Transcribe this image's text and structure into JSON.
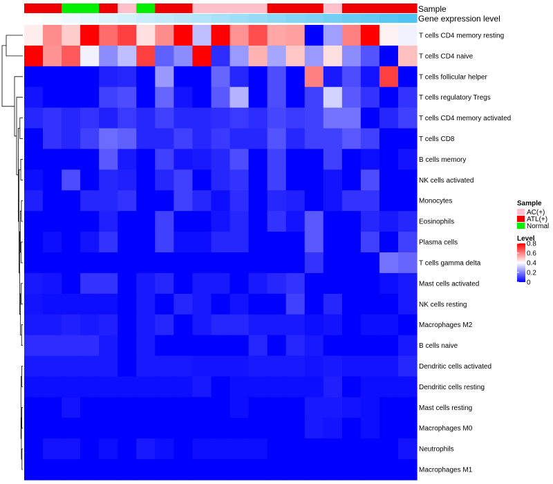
{
  "chart_data": {
    "type": "heatmap",
    "title": "",
    "annotation_tracks": [
      {
        "name": "Sample",
        "values": [
          "ATL(+)",
          "ATL(+)",
          "Normal",
          "Normal",
          "ATL(+)",
          "AC(+)",
          "Normal",
          "ATL(+)",
          "ATL(+)",
          "AC(+)",
          "AC(+)",
          "AC(+)",
          "AC(+)",
          "ATL(+)",
          "ATL(+)",
          "ATL(+)",
          "AC(+)",
          "ATL(+)",
          "ATL(+)",
          "ATL(+)",
          "ATL(+)"
        ]
      },
      {
        "name": "Gene expression level",
        "values": [
          0.0,
          0.05,
          0.1,
          0.15,
          0.2,
          0.25,
          0.3,
          0.35,
          0.4,
          0.45,
          0.5,
          0.55,
          0.6,
          0.65,
          0.7,
          0.75,
          0.8,
          0.85,
          0.9,
          0.95,
          1.0
        ]
      }
    ],
    "sample_legend": {
      "title": "Sample",
      "entries": [
        {
          "label": "AC(+)",
          "color": "#ffc0cb"
        },
        {
          "label": "ATL(+)",
          "color": "#ee0000"
        },
        {
          "label": "Normal",
          "color": "#00ee00"
        }
      ]
    },
    "level_legend": {
      "title": "Level",
      "min": 0,
      "max": 0.8,
      "ticks": [
        "0.8",
        "0.6",
        "0.4",
        "0.2",
        "0"
      ],
      "tick_values": [
        0.8,
        0.6,
        0.4,
        0.2,
        0
      ],
      "colors": {
        "low": "#0000ff",
        "mid": "#ffffff",
        "high": "#ff0000",
        "mid_value": 0.4
      }
    },
    "gene_expression_colors": {
      "low": "#ffffff",
      "high": "#4fc3f0"
    },
    "rows": [
      "T cells CD4 memory resting",
      "T cells CD4 naive",
      "T cells follicular helper",
      "T cells regulatory  Tregs",
      "T cells CD4 memory activated",
      "T cells CD8",
      "B cells memory",
      "NK cells activated",
      "Monocytes",
      "Eosinophils",
      "Plasma cells",
      "T cells gamma delta",
      "Mast cells activated",
      "NK cells resting",
      "Macrophages M2",
      "B cells naive",
      "Dendritic cells activated",
      "Dendritic cells resting",
      "Mast cells resting",
      "Macrophages M0",
      "Neutrophils",
      "Macrophages M1"
    ],
    "values": [
      [
        0.43,
        0.58,
        0.48,
        0.8,
        0.63,
        0.7,
        0.45,
        0.58,
        0.8,
        0.3,
        0.8,
        0.57,
        0.68,
        0.54,
        0.55,
        0.0,
        0.25,
        0.6,
        0.8,
        0.42,
        0.38
      ],
      [
        0.8,
        0.57,
        0.66,
        0.38,
        0.22,
        0.3,
        0.7,
        0.15,
        0.22,
        0.8,
        0.07,
        0.24,
        0.52,
        0.26,
        0.49,
        0.24,
        0.45,
        0.22,
        0.13,
        0.0,
        0.5
      ],
      [
        0.0,
        0.0,
        0.0,
        0.0,
        0.05,
        0.06,
        0.0,
        0.24,
        0.0,
        0.0,
        0.16,
        0.06,
        0.0,
        0.12,
        0.0,
        0.6,
        0.04,
        0.12,
        0.03,
        0.7,
        0.0
      ],
      [
        0.03,
        0.0,
        0.0,
        0.0,
        0.1,
        0.12,
        0.0,
        0.16,
        0.03,
        0.0,
        0.14,
        0.28,
        0.0,
        0.12,
        0.0,
        0.1,
        0.33,
        0.14,
        0.08,
        0.0,
        0.08
      ],
      [
        0.06,
        0.08,
        0.06,
        0.08,
        0.05,
        0.09,
        0.06,
        0.1,
        0.06,
        0.06,
        0.07,
        0.09,
        0.07,
        0.11,
        0.09,
        0.1,
        0.18,
        0.18,
        0.0,
        0.06,
        0.1
      ],
      [
        0.0,
        0.08,
        0.06,
        0.1,
        0.17,
        0.15,
        0.06,
        0.06,
        0.1,
        0.06,
        0.09,
        0.06,
        0.06,
        0.13,
        0.06,
        0.1,
        0.1,
        0.14,
        0.1,
        0.0,
        0.0
      ],
      [
        0.0,
        0.0,
        0.0,
        0.0,
        0.14,
        0.04,
        0.0,
        0.1,
        0.03,
        0.04,
        0.06,
        0.12,
        0.0,
        0.1,
        0.0,
        0.0,
        0.1,
        0.0,
        0.02,
        0.0,
        0.03
      ],
      [
        0.02,
        0.0,
        0.12,
        0.0,
        0.06,
        0.05,
        0.0,
        0.06,
        0.1,
        0.0,
        0.06,
        0.08,
        0.0,
        0.1,
        0.0,
        0.0,
        0.03,
        0.0,
        0.12,
        0.0,
        0.0
      ],
      [
        0.05,
        0.0,
        0.0,
        0.06,
        0.06,
        0.08,
        0.0,
        0.0,
        0.1,
        0.06,
        0.02,
        0.07,
        0.0,
        0.06,
        0.05,
        0.0,
        0.03,
        0.08,
        0.08,
        0.0,
        0.0
      ],
      [
        0.0,
        0.0,
        0.0,
        0.0,
        0.05,
        0.0,
        0.0,
        0.1,
        0.0,
        0.0,
        0.03,
        0.06,
        0.0,
        0.08,
        0.03,
        0.14,
        0.0,
        0.0,
        0.06,
        0.04,
        0.06
      ],
      [
        0.0,
        0.02,
        0.0,
        0.03,
        0.08,
        0.0,
        0.0,
        0.1,
        0.02,
        0.02,
        0.06,
        0.06,
        0.0,
        0.0,
        0.0,
        0.14,
        0.0,
        0.0,
        0.1,
        0.0,
        0.1
      ],
      [
        0.0,
        0.0,
        0.0,
        0.0,
        0.0,
        0.0,
        0.0,
        0.0,
        0.0,
        0.0,
        0.0,
        0.0,
        0.0,
        0.0,
        0.0,
        0.08,
        0.0,
        0.0,
        0.0,
        0.18,
        0.16
      ],
      [
        0.04,
        0.03,
        0.0,
        0.08,
        0.08,
        0.0,
        0.04,
        0.06,
        0.0,
        0.04,
        0.04,
        0.0,
        0.04,
        0.06,
        0.08,
        0.0,
        0.0,
        0.0,
        0.0,
        0.02,
        0.04
      ],
      [
        0.03,
        0.02,
        0.02,
        0.02,
        0.02,
        0.0,
        0.04,
        0.0,
        0.06,
        0.04,
        0.0,
        0.03,
        0.0,
        0.0,
        0.1,
        0.0,
        0.06,
        0.0,
        0.0,
        0.0,
        0.04
      ],
      [
        0.04,
        0.04,
        0.05,
        0.04,
        0.05,
        0.0,
        0.04,
        0.06,
        0.0,
        0.04,
        0.06,
        0.06,
        0.04,
        0.04,
        0.04,
        0.02,
        0.03,
        0.0,
        0.02,
        0.02,
        0.0
      ],
      [
        0.07,
        0.07,
        0.07,
        0.07,
        0.04,
        0.0,
        0.04,
        0.0,
        0.0,
        0.0,
        0.0,
        0.0,
        0.06,
        0.0,
        0.06,
        0.04,
        0.0,
        0.0,
        0.0,
        0.0,
        0.04
      ],
      [
        0.04,
        0.04,
        0.04,
        0.04,
        0.04,
        0.0,
        0.04,
        0.04,
        0.04,
        0.03,
        0.03,
        0.03,
        0.04,
        0.04,
        0.04,
        0.03,
        0.04,
        0.03,
        0.03,
        0.03,
        0.06
      ],
      [
        0.02,
        0.02,
        0.02,
        0.02,
        0.02,
        0.02,
        0.02,
        0.02,
        0.02,
        0.04,
        0.0,
        0.02,
        0.02,
        0.02,
        0.02,
        0.02,
        0.05,
        0.0,
        0.02,
        0.02,
        0.02
      ],
      [
        0.0,
        0.0,
        0.03,
        0.0,
        0.0,
        0.0,
        0.0,
        0.0,
        0.0,
        0.0,
        0.0,
        0.02,
        0.0,
        0.0,
        0.0,
        0.04,
        0.04,
        0.03,
        0.02,
        0.0,
        0.0
      ],
      [
        0.0,
        0.0,
        0.0,
        0.0,
        0.0,
        0.0,
        0.0,
        0.0,
        0.0,
        0.0,
        0.0,
        0.0,
        0.0,
        0.0,
        0.0,
        0.04,
        0.03,
        0.0,
        0.02,
        0.0,
        0.0
      ],
      [
        0.0,
        0.03,
        0.03,
        0.0,
        0.02,
        0.0,
        0.04,
        0.02,
        0.0,
        0.02,
        0.02,
        0.02,
        0.02,
        0.0,
        0.0,
        0.0,
        0.0,
        0.0,
        0.0,
        0.0,
        0.03
      ],
      [
        0.0,
        0.0,
        0.0,
        0.0,
        0.0,
        0.0,
        0.0,
        0.0,
        0.0,
        0.0,
        0.0,
        0.0,
        0.0,
        0.0,
        0.0,
        0.0,
        0.0,
        0.0,
        0.0,
        0.0,
        0.0
      ]
    ]
  }
}
